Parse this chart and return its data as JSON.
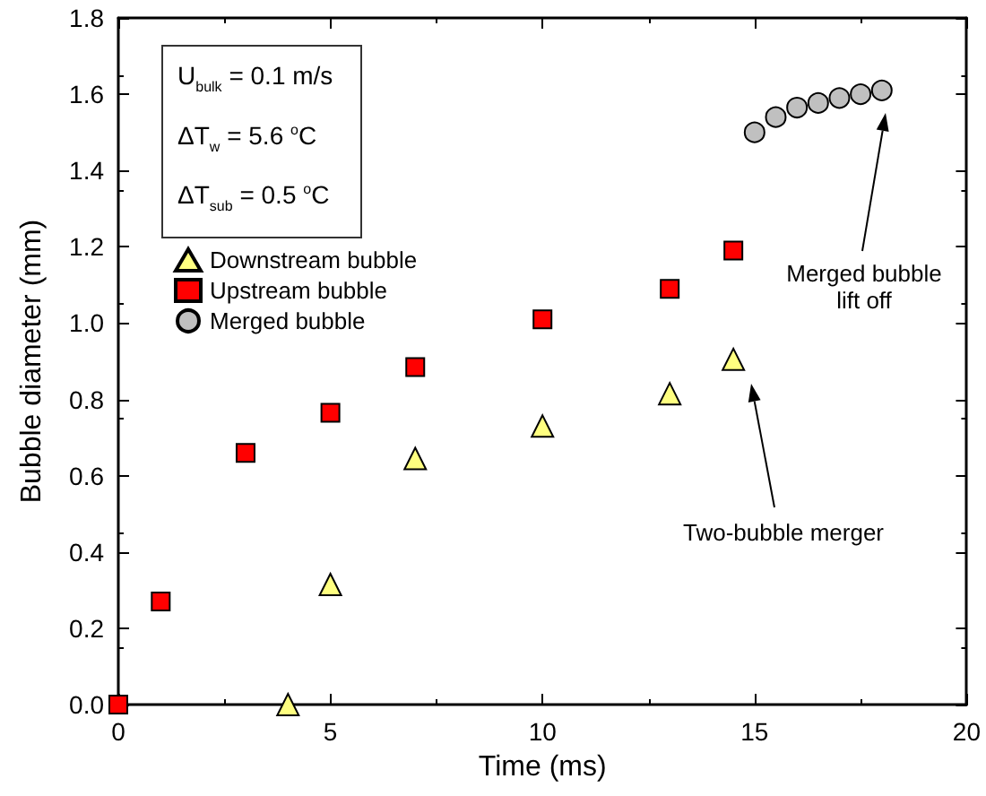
{
  "chart_data": {
    "type": "scatter",
    "xlabel": "Time (ms)",
    "ylabel": "Bubble diameter (mm)",
    "xlim": [
      0,
      20
    ],
    "xticks": [
      0,
      5,
      10,
      15,
      20
    ],
    "ylim": [
      0,
      1.8
    ],
    "yticks": [
      {
        "value": 0,
        "label": "0.0"
      },
      {
        "value": 0.2,
        "label": "0.2"
      },
      {
        "value": 0.4,
        "label": "0.4"
      },
      {
        "value": 0.6,
        "label": "0.6"
      },
      {
        "value": 0.8,
        "label": "0.8"
      },
      {
        "value": 1.0,
        "label": "1.0"
      },
      {
        "value": 1.2,
        "label": "1.2"
      },
      {
        "value": 1.4,
        "label": "1.4"
      },
      {
        "value": 1.6,
        "label": "1.6"
      },
      {
        "value": 1.8,
        "label": "1.8"
      }
    ],
    "grid": false,
    "legend": "top left",
    "series": [
      {
        "name": "Downstream bubble",
        "color": "#ffff80",
        "marker": "triangle",
        "x": [
          4,
          5,
          7,
          10,
          13,
          14.5
        ],
        "values": [
          0,
          0.315,
          0.645,
          0.73,
          0.815,
          0.905
        ]
      },
      {
        "name": "Upstream bubble",
        "color": "#ff0000",
        "marker": "square",
        "x": [
          0,
          1,
          3,
          5,
          7,
          10,
          13,
          14.5
        ],
        "values": [
          0,
          0.27,
          0.66,
          0.765,
          0.885,
          1.01,
          1.09,
          1.19
        ]
      },
      {
        "name": "Merged bubble",
        "color": "#c0c0c0",
        "marker": "circle",
        "x": [
          15,
          15.5,
          16,
          16.5,
          17,
          17.5,
          18
        ],
        "values": [
          1.5,
          1.54,
          1.565,
          1.577,
          1.59,
          1.6,
          1.61
        ]
      }
    ],
    "annotations": [
      "U$_{bulk}$ = 0.1 m/s",
      "ΔT$_{w}$ = 5.6 $^{o}$C",
      "ΔT$_{sub}$ = 0.5 $^{o}$C",
      "Two-bubble merger",
      "Merged bubble lift off"
    ]
  }
}
